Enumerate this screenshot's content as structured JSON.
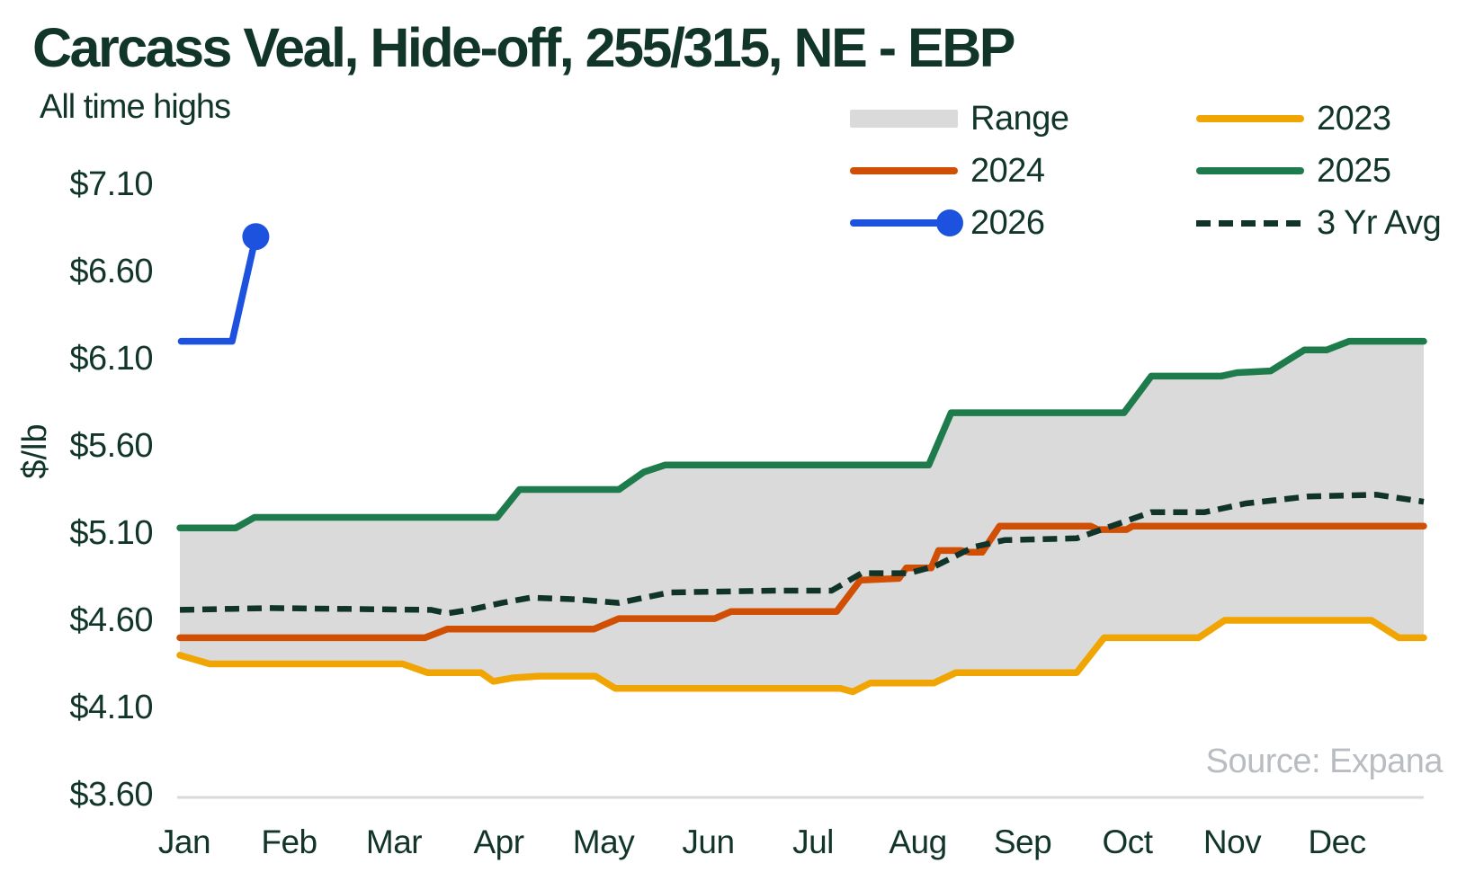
{
  "title": "Carcass Veal, Hide-off, 255/315, NE - EBP",
  "subtitle": "All time highs",
  "source": "Source: Expana",
  "colors": {
    "title_text": "#12352a",
    "axis_text": "#12352a",
    "green_2025": "#1e7b4c",
    "orange_2024": "#d14f04",
    "yellow_2023": "#f0a502",
    "blue_2026": "#1c52dd",
    "avg_dash": "#11342a",
    "range_band": "#dadada",
    "baseline": "#d9d9d9",
    "source_text": "#b9bdc1"
  },
  "legend": {
    "items": [
      {
        "id": "range",
        "label": "Range",
        "swatch": "block",
        "color_key": "range_band"
      },
      {
        "id": "y2024",
        "label": "2024",
        "swatch": "line",
        "color_key": "orange_2024"
      },
      {
        "id": "y2026",
        "label": "2026",
        "swatch": "line-dot",
        "color_key": "blue_2026"
      },
      {
        "id": "y2023",
        "label": "2023",
        "swatch": "line",
        "color_key": "yellow_2023"
      },
      {
        "id": "y2025",
        "label": "2025",
        "swatch": "line",
        "color_key": "green_2025"
      },
      {
        "id": "avg3yr",
        "label": "3 Yr Avg",
        "swatch": "dash",
        "color_key": "avg_dash"
      }
    ]
  },
  "y_axis": {
    "title": "$/lb",
    "ticks": [
      {
        "label": "$7.10",
        "value": 7.1
      },
      {
        "label": "$6.60",
        "value": 6.6
      },
      {
        "label": "$6.10",
        "value": 6.1
      },
      {
        "label": "$5.60",
        "value": 5.6
      },
      {
        "label": "$5.10",
        "value": 5.1
      },
      {
        "label": "$4.60",
        "value": 4.6
      },
      {
        "label": "$4.10",
        "value": 4.1
      },
      {
        "label": "$3.60",
        "value": 3.6
      }
    ]
  },
  "x_axis": {
    "months": [
      "Jan",
      "Feb",
      "Mar",
      "Apr",
      "May",
      "Jun",
      "Jul",
      "Aug",
      "Sep",
      "Oct",
      "Nov",
      "Dec"
    ]
  },
  "chart_data": {
    "type": "line",
    "title": "Carcass Veal, Hide-off, 255/315, NE - EBP",
    "annotation": "All time highs",
    "xlabel": "",
    "ylabel": "$/lb",
    "ylim": [
      3.6,
      7.1
    ],
    "y_ticks": [
      3.6,
      4.1,
      4.6,
      5.1,
      5.6,
      6.1,
      6.6,
      7.1
    ],
    "x_categories": [
      "Jan",
      "Feb",
      "Mar",
      "Apr",
      "May",
      "Jun",
      "Jul",
      "Aug",
      "Sep",
      "Oct",
      "Nov",
      "Dec"
    ],
    "grid": false,
    "legend_position": "top-right",
    "units": "USD per lb",
    "note": "points are [fraction_of_year 0-1, $/lb]; weekly step series",
    "range_band": {
      "upper_series": "2025",
      "lower_series": "2023",
      "fill_key": "range_band"
    },
    "series": [
      {
        "name": "2023",
        "color_key": "yellow_2023",
        "style": "solid",
        "points": [
          [
            0.0,
            4.4
          ],
          [
            0.024,
            4.35
          ],
          [
            0.179,
            4.35
          ],
          [
            0.199,
            4.3
          ],
          [
            0.242,
            4.3
          ],
          [
            0.252,
            4.25
          ],
          [
            0.268,
            4.27
          ],
          [
            0.289,
            4.28
          ],
          [
            0.334,
            4.28
          ],
          [
            0.35,
            4.21
          ],
          [
            0.531,
            4.21
          ],
          [
            0.541,
            4.19
          ],
          [
            0.555,
            4.24
          ],
          [
            0.606,
            4.24
          ],
          [
            0.624,
            4.3
          ],
          [
            0.721,
            4.3
          ],
          [
            0.743,
            4.5
          ],
          [
            0.819,
            4.5
          ],
          [
            0.84,
            4.6
          ],
          [
            0.958,
            4.6
          ],
          [
            0.98,
            4.5
          ],
          [
            1.0,
            4.5
          ]
        ]
      },
      {
        "name": "2024",
        "color_key": "orange_2024",
        "style": "solid",
        "points": [
          [
            0.0,
            4.5
          ],
          [
            0.197,
            4.5
          ],
          [
            0.215,
            4.55
          ],
          [
            0.333,
            4.55
          ],
          [
            0.353,
            4.61
          ],
          [
            0.43,
            4.61
          ],
          [
            0.443,
            4.65
          ],
          [
            0.528,
            4.65
          ],
          [
            0.547,
            4.83
          ],
          [
            0.578,
            4.84
          ],
          [
            0.584,
            4.9
          ],
          [
            0.604,
            4.9
          ],
          [
            0.61,
            5.0
          ],
          [
            0.628,
            5.0
          ],
          [
            0.635,
            4.99
          ],
          [
            0.645,
            4.99
          ],
          [
            0.659,
            5.14
          ],
          [
            0.732,
            5.14
          ],
          [
            0.738,
            5.12
          ],
          [
            0.761,
            5.12
          ],
          [
            0.766,
            5.14
          ],
          [
            1.0,
            5.14
          ]
        ]
      },
      {
        "name": "2025",
        "color_key": "green_2025",
        "style": "solid",
        "points": [
          [
            0.0,
            5.13
          ],
          [
            0.045,
            5.13
          ],
          [
            0.06,
            5.19
          ],
          [
            0.255,
            5.19
          ],
          [
            0.273,
            5.35
          ],
          [
            0.353,
            5.35
          ],
          [
            0.373,
            5.45
          ],
          [
            0.39,
            5.49
          ],
          [
            0.602,
            5.49
          ],
          [
            0.62,
            5.79
          ],
          [
            0.759,
            5.79
          ],
          [
            0.781,
            6.0
          ],
          [
            0.837,
            6.0
          ],
          [
            0.85,
            6.02
          ],
          [
            0.877,
            6.03
          ],
          [
            0.904,
            6.15
          ],
          [
            0.922,
            6.15
          ],
          [
            0.94,
            6.2
          ],
          [
            1.0,
            6.2
          ]
        ]
      },
      {
        "name": "3 Yr Avg",
        "color_key": "avg_dash",
        "style": "dashed",
        "points": [
          [
            0.0,
            4.66
          ],
          [
            0.072,
            4.67
          ],
          [
            0.202,
            4.66
          ],
          [
            0.215,
            4.64
          ],
          [
            0.233,
            4.66
          ],
          [
            0.259,
            4.7
          ],
          [
            0.282,
            4.73
          ],
          [
            0.318,
            4.72
          ],
          [
            0.353,
            4.7
          ],
          [
            0.394,
            4.76
          ],
          [
            0.477,
            4.77
          ],
          [
            0.524,
            4.77
          ],
          [
            0.548,
            4.87
          ],
          [
            0.586,
            4.87
          ],
          [
            0.607,
            4.91
          ],
          [
            0.638,
            5.02
          ],
          [
            0.663,
            5.06
          ],
          [
            0.721,
            5.07
          ],
          [
            0.781,
            5.22
          ],
          [
            0.824,
            5.22
          ],
          [
            0.857,
            5.27
          ],
          [
            0.907,
            5.31
          ],
          [
            0.962,
            5.32
          ],
          [
            1.0,
            5.28
          ]
        ]
      },
      {
        "name": "2026",
        "color_key": "blue_2026",
        "style": "solid-dot",
        "points": [
          [
            0.001,
            6.2
          ],
          [
            0.042,
            6.2
          ],
          [
            0.061,
            6.8
          ]
        ]
      }
    ]
  }
}
